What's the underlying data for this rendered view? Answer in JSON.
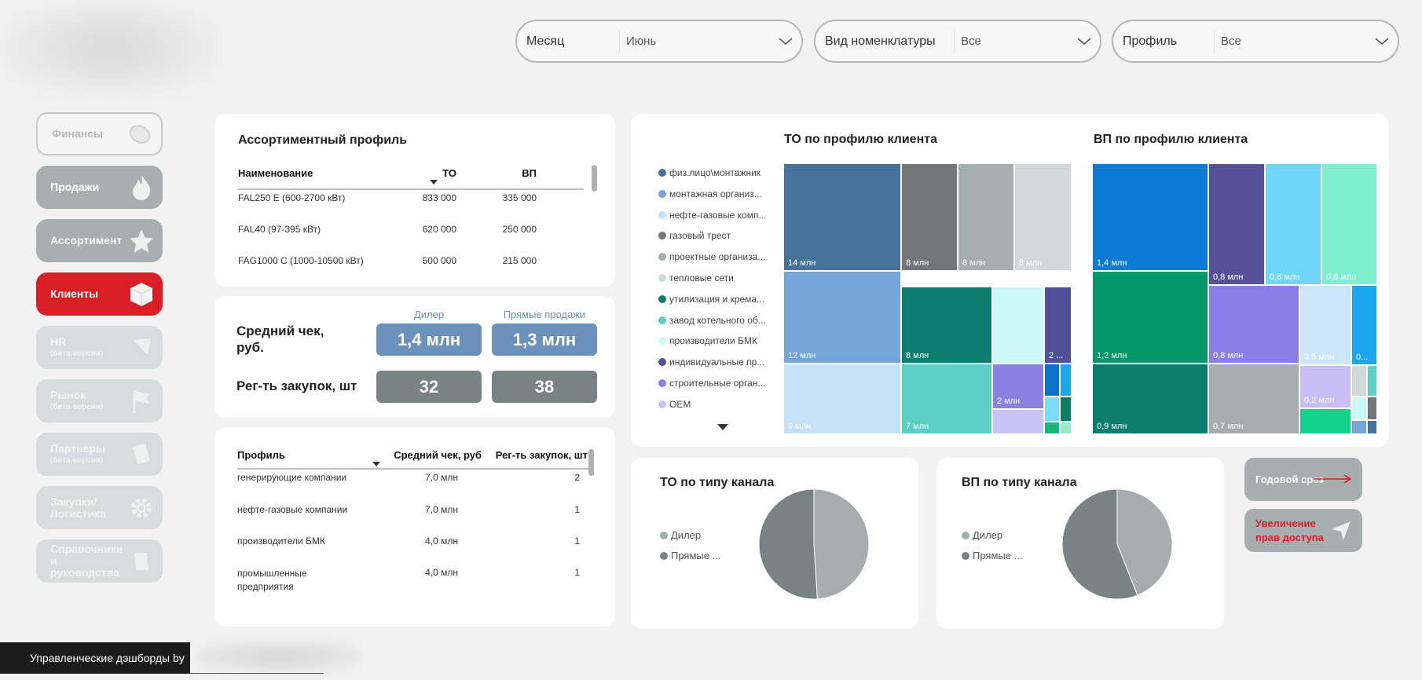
{
  "filters": [
    {
      "label": "Месяц",
      "value": "Июнь"
    },
    {
      "label": "Вид номенклатуры",
      "value": "Все"
    },
    {
      "label": "Профиль",
      "value": "Все"
    }
  ],
  "nav": [
    {
      "label": "Финансы",
      "sub": "",
      "icon": "coins-icon"
    },
    {
      "label": "Продажи",
      "sub": "",
      "icon": "flame-icon"
    },
    {
      "label": "Ассортимент",
      "sub": "",
      "icon": "star-icon"
    },
    {
      "label": "Клиенты",
      "sub": "",
      "icon": "cube-icon"
    },
    {
      "label": "HR",
      "sub": "(бета-версия)",
      "icon": "paper-plane-icon"
    },
    {
      "label": "Рынок",
      "sub": "(бета-версия)",
      "icon": "flag-icon"
    },
    {
      "label": "Партнеры",
      "sub": "(бета-версия)",
      "icon": "document-icon"
    },
    {
      "label": "Закупки/",
      "sub": "Логистика",
      "icon": "gear-icon"
    },
    {
      "label": "Справочники",
      "sub": "и руководства",
      "icon": "book-icon"
    }
  ],
  "footer": {
    "text": "Управленческие дэшборды by"
  },
  "assortment": {
    "title": "Ассортиментный профиль",
    "headers": [
      "Наименование",
      "ТО",
      "ВП"
    ],
    "rows": [
      [
        "FAL250 E (600-2700 кВт)",
        "833 000",
        "335 000"
      ],
      [
        "FAL40 (97-395 кВт)",
        "620 000",
        "250 000"
      ],
      [
        "FAG1000 C (1000-10500 кВт)",
        "500 000",
        "215 000"
      ]
    ]
  },
  "kpi": {
    "col_dealer": "Дилер",
    "col_direct": "Прямые продажи",
    "avg_check_label": "Средний чек, руб.",
    "avg_check_dealer": "1,4 млн",
    "avg_check_direct": "1,3 млн",
    "purchases_label": "Рег-ть закупок, шт",
    "purchases_dealer": "32",
    "purchases_direct": "38"
  },
  "profile_table": {
    "headers": [
      "Профиль",
      "Средний чек, руб",
      "Рег-ть закупок, шт"
    ],
    "rows": [
      [
        "генерирующие компании",
        "7,0 млн",
        "2"
      ],
      [
        "нефте-газовые компании",
        "7,0 млн",
        "1"
      ],
      [
        "производители БМК",
        "4,0 млн",
        "1"
      ],
      [
        "промышленные предприятия",
        "4,0 млн",
        "1"
      ]
    ]
  },
  "treemap_section": {
    "title_to": "ТО по профилю клиента",
    "title_vp": "ВП по профилю клиента",
    "legend": [
      {
        "label": "физ.лицо\\монтажник",
        "color": "#44729a"
      },
      {
        "label": "монтажная организ...",
        "color": "#74a5d6"
      },
      {
        "label": "нефте-газовые комп...",
        "color": "#c4e1f7"
      },
      {
        "label": "газовый трест",
        "color": "#727676"
      },
      {
        "label": "проектные организа...",
        "color": "#a5adad"
      },
      {
        "label": "тепловые сети",
        "color": "#d3d8da"
      },
      {
        "label": "утилизация и крема...",
        "color": "#0e7c70"
      },
      {
        "label": "завод котельного об...",
        "color": "#5ccfc5"
      },
      {
        "label": "производители БМК",
        "color": "#cdf8f8"
      },
      {
        "label": "индивидуальные пр...",
        "color": "#4f5095"
      },
      {
        "label": "строительные орган...",
        "color": "#8a82e3"
      },
      {
        "label": "OEM",
        "color": "#c8c1f6"
      }
    ],
    "to_labels": [
      "14 млн",
      "8 млн",
      "8 млн",
      "8 млн",
      "12 млн",
      "8 млн",
      "2 ...",
      "9 млн",
      "7 млн",
      "2 млн"
    ],
    "vp_labels": [
      "1,4 млн",
      "0,8 млн",
      "0,8 млн",
      "0,8 млн",
      "1,2 млн",
      "0,8 млн",
      "0,5 млн",
      "0...",
      "0,9 млн",
      "0,7 млн",
      "0,2 млн"
    ]
  },
  "channel_charts": [
    {
      "title": "ТО по типу канала",
      "legend": [
        "Дилер",
        "Прямые ..."
      ],
      "colors": [
        "#a5adad",
        "#7a8384"
      ]
    },
    {
      "title": "ВП по типу канала",
      "legend": [
        "Дилер",
        "Прямые ..."
      ],
      "colors": [
        "#a5adad",
        "#7a8384"
      ]
    }
  ],
  "chart_data": [
    {
      "type": "pie",
      "title": "ТО по типу канала",
      "categories": [
        "Дилер",
        "Прямые ..."
      ],
      "values": [
        49,
        51
      ]
    },
    {
      "type": "pie",
      "title": "ВП по типу канала",
      "categories": [
        "Дилер",
        "Прямые ..."
      ],
      "values": [
        44,
        56
      ]
    }
  ],
  "actions": {
    "annual_label": "Годовой срез",
    "access_label": "Увеличение прав доступа"
  }
}
